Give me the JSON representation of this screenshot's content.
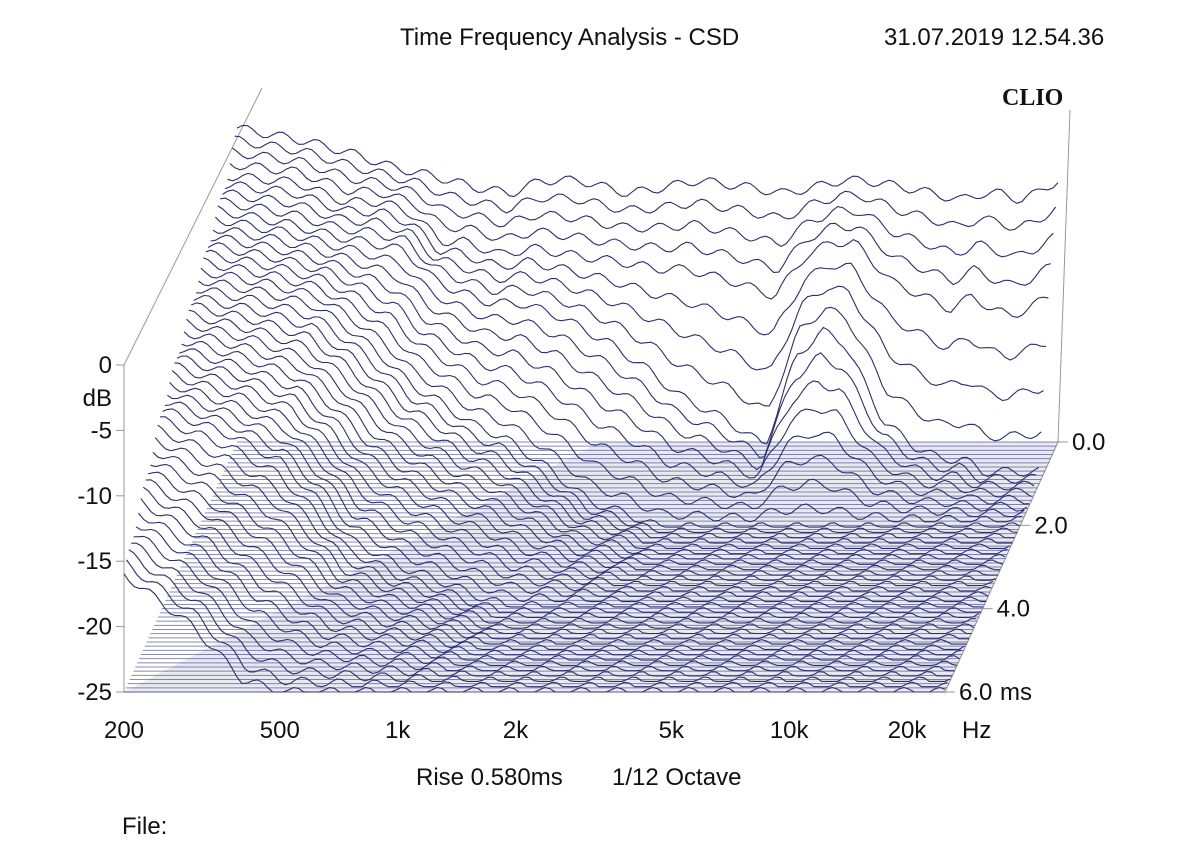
{
  "header": {
    "title": "Time Frequency Analysis - CSD",
    "timestamp": "31.07.2019 12.54.36",
    "brand": "CLIO"
  },
  "footer": {
    "rise": "Rise 0.580ms",
    "resolution": "1/12 Octave",
    "file_label": "File:"
  },
  "chart_data": {
    "type": "waterfall",
    "title": "Time Frequency Analysis - CSD",
    "xlabel": "Hz",
    "ylabel": "dB",
    "zlabel": "ms",
    "x_scale": "log",
    "xlim": [
      200,
      25000
    ],
    "ylim": [
      -25,
      0
    ],
    "zlim": [
      0,
      6
    ],
    "x_ticks": [
      200,
      500,
      1000,
      2000,
      5000,
      10000,
      20000
    ],
    "x_tick_labels": [
      "200",
      "500",
      "1k",
      "2k",
      "5k",
      "10k",
      "20k"
    ],
    "x_unit_label": "Hz",
    "y_ticks": [
      0,
      -5,
      -10,
      -15,
      -20,
      -25
    ],
    "y_tick_labels": [
      "0",
      "-5",
      "-10",
      "-15",
      "-20",
      "-25"
    ],
    "z_ticks": [
      0,
      2,
      4,
      6
    ],
    "z_tick_labels": [
      "0.0",
      "2.0",
      "4.0",
      "6.0"
    ],
    "z_unit_label": "ms",
    "rise_time_ms": 0.58,
    "smoothing": "1/12 Octave",
    "line_color": "#2b2e72",
    "floor_color": "#2b2e72",
    "series": [
      {
        "time_ms": 0.0,
        "freq_hz": [
          200,
          300,
          400,
          500,
          600,
          700,
          800,
          1000,
          1200,
          1500,
          2000,
          2500,
          3000,
          4000,
          5000,
          6000,
          7000,
          8000,
          10000,
          12000,
          14000,
          16000,
          18000,
          20000,
          22000,
          25000
        ],
        "db": [
          -1,
          -2,
          -3,
          -4,
          -4.5,
          -5,
          -5.5,
          -6,
          -5,
          -5,
          -6,
          -5.5,
          -5,
          -5.5,
          -6,
          -5.5,
          -5,
          -5,
          -5.5,
          -6,
          -6.5,
          -6,
          -6,
          -6.5,
          -6,
          -5
        ]
      },
      {
        "time_ms": 0.5,
        "freq_hz": [
          200,
          300,
          400,
          500,
          600,
          700,
          800,
          1000,
          1200,
          1500,
          2000,
          2500,
          3000,
          4000,
          5000,
          6000,
          7000,
          8000,
          10000,
          12000,
          14000,
          16000,
          18000,
          20000,
          22000,
          25000
        ],
        "db": [
          -3,
          -3.5,
          -5,
          -5,
          -6,
          -8,
          -8,
          -9,
          -8.5,
          -9,
          -9.5,
          -10,
          -10,
          -11,
          -12,
          -9,
          -8,
          -8,
          -11,
          -12,
          -13,
          -12,
          -13,
          -13.5,
          -13,
          -12
        ]
      },
      {
        "time_ms": 1.0,
        "freq_hz": [
          200,
          300,
          400,
          500,
          600,
          700,
          800,
          1000,
          1200,
          1500,
          2000,
          2500,
          3000,
          4000,
          5000,
          6000,
          7000,
          8000,
          10000,
          12000,
          14000,
          16000,
          18000,
          20000,
          22000,
          25000
        ],
        "db": [
          -4,
          -5,
          -6,
          -6.5,
          -7,
          -9,
          -10,
          -11,
          -11,
          -12,
          -14,
          -16,
          -18,
          -20,
          -22,
          -15,
          -13,
          -14,
          -20,
          -22,
          -23,
          -23,
          -24,
          -24,
          -24,
          -24
        ]
      },
      {
        "time_ms": 2.0,
        "freq_hz": [
          200,
          300,
          400,
          500,
          600,
          700,
          800,
          1000,
          1200,
          1500,
          2000,
          2500,
          3000,
          4000,
          5000,
          6000,
          7000,
          8000,
          10000
        ],
        "db": [
          -6,
          -7,
          -8,
          -10,
          -12,
          -14,
          -15,
          -17,
          -18,
          -20,
          -23,
          -24,
          -25,
          -25,
          -25,
          -25,
          -25,
          -25,
          -25
        ]
      },
      {
        "time_ms": 4.0,
        "freq_hz": [
          200,
          300,
          400,
          500,
          600,
          700,
          800,
          1000,
          1200,
          1500,
          2000
        ],
        "db": [
          -10,
          -12,
          -14,
          -17,
          -20,
          -21,
          -22,
          -23,
          -24,
          -25,
          -25
        ]
      },
      {
        "time_ms": 6.0,
        "freq_hz": [
          200,
          300,
          400,
          500,
          600,
          700,
          800,
          1000
        ],
        "db": [
          -16,
          -20,
          -24,
          -25,
          -25,
          -25,
          -25,
          -25
        ]
      }
    ]
  }
}
